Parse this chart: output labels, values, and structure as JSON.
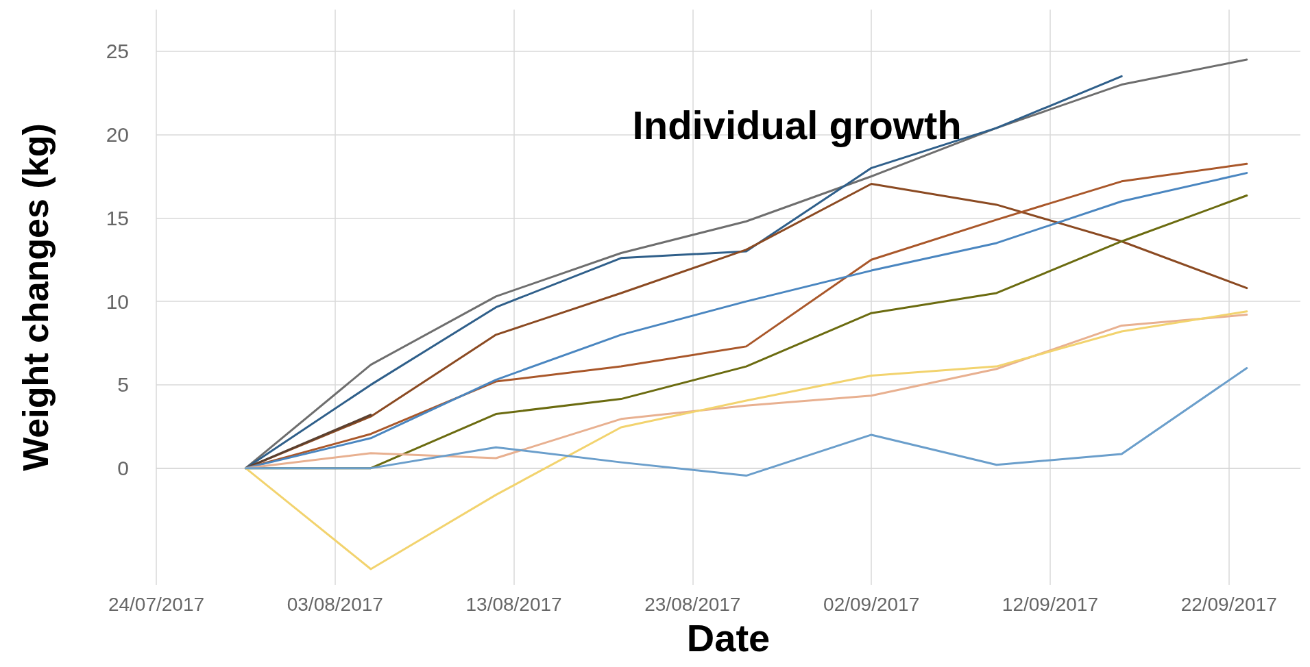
{
  "chart_data": {
    "type": "line",
    "title": "Individual growth",
    "xlabel": "Date",
    "ylabel": "Weight changes (kg)",
    "x": [
      "2017-07-29",
      "2017-08-05",
      "2017-08-12",
      "2017-08-19",
      "2017-08-26",
      "2017-09-02",
      "2017-09-09",
      "2017-09-16",
      "2017-09-23"
    ],
    "series": [
      {
        "color": "#6e6e6e",
        "values": [
          0,
          6.2,
          10.3,
          12.9,
          14.8,
          17.5,
          20.4,
          23.0,
          24.5
        ]
      },
      {
        "color": "#2f5f8a",
        "values": [
          0,
          5.0,
          9.65,
          12.6,
          13.0,
          18.0,
          20.4,
          23.5,
          null
        ]
      },
      {
        "color": "#8b4a22",
        "values": [
          0,
          3.1,
          8.0,
          10.5,
          13.1,
          17.05,
          15.8,
          13.6,
          10.8
        ]
      },
      {
        "color": "#5a4030",
        "values": [
          0,
          3.2,
          null,
          null,
          null,
          null,
          null,
          null,
          null
        ]
      },
      {
        "color": "#a9572a",
        "values": [
          0,
          2.05,
          5.2,
          6.1,
          7.3,
          12.5,
          14.9,
          17.2,
          18.25
        ]
      },
      {
        "color": "#4a86c0",
        "values": [
          0,
          1.8,
          5.3,
          8.0,
          10.0,
          11.85,
          13.5,
          16.0,
          17.7
        ]
      },
      {
        "color": "#6b6b10",
        "values": [
          0,
          0,
          3.25,
          4.15,
          6.1,
          9.3,
          10.5,
          13.6,
          16.35
        ]
      },
      {
        "color": "#e8b090",
        "values": [
          0,
          0.9,
          0.6,
          2.95,
          3.75,
          4.35,
          5.95,
          8.55,
          9.2
        ]
      },
      {
        "color": "#f2d36e",
        "values": [
          0,
          -6.05,
          -1.6,
          2.45,
          4.05,
          5.55,
          6.1,
          8.2,
          9.4
        ]
      },
      {
        "color": "#6a9ecb",
        "values": [
          0,
          0,
          1.25,
          0.35,
          -0.45,
          2.0,
          0.2,
          0.85,
          6.0
        ]
      }
    ],
    "xlim": [
      "2017-07-24",
      "2017-09-26"
    ],
    "xticks": [
      {
        "value": "2017-07-24",
        "label": "24/07/2017"
      },
      {
        "value": "2017-08-03",
        "label": "03/08/2017"
      },
      {
        "value": "2017-08-13",
        "label": "13/08/2017"
      },
      {
        "value": "2017-08-23",
        "label": "23/08/2017"
      },
      {
        "value": "2017-09-02",
        "label": "02/09/2017"
      },
      {
        "value": "2017-09-12",
        "label": "12/09/2017"
      },
      {
        "value": "2017-09-22",
        "label": "22/09/2017"
      }
    ],
    "ylim": [
      -7,
      27.5
    ],
    "yticks": [
      0,
      5,
      10,
      15,
      20,
      25
    ],
    "grid": true,
    "marker": "none",
    "line_style": "solid"
  }
}
